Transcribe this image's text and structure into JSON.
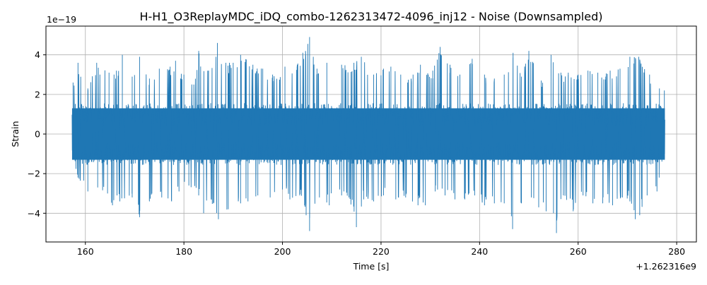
{
  "chart_data": {
    "type": "line",
    "title": "H-H1_O3ReplayMDC_iDQ_combo-1262313472-4096_inj12 - Noise (Downsampled)",
    "xlabel": "Time [s]",
    "ylabel": "Strain",
    "x_offset_label": "+1.262316e9",
    "y_scale_label": "1e−19",
    "xlim": [
      152.0,
      284.0
    ],
    "ylim": [
      -5.45,
      5.45
    ],
    "x_ticks": [
      160,
      180,
      200,
      220,
      240,
      260,
      280
    ],
    "x_tick_labels": [
      "160",
      "180",
      "200",
      "220",
      "240",
      "260",
      "280"
    ],
    "y_ticks": [
      -4,
      -2,
      0,
      2,
      4
    ],
    "y_tick_labels": [
      "−4",
      "−2",
      "0",
      "2",
      "4"
    ],
    "grid": true,
    "series": [
      {
        "color": "#1f77b4",
        "x_range": [
          157.3,
          277.6
        ],
        "typical_band": [
          -1.3,
          1.3
        ],
        "envelope_upper": [
          [
            157.5,
            2.6
          ],
          [
            158.5,
            3.6
          ],
          [
            160.5,
            2.3
          ],
          [
            162.3,
            3.6
          ],
          [
            164.8,
            3.1
          ],
          [
            166.3,
            3.2
          ],
          [
            167.5,
            4.0
          ],
          [
            169.5,
            2.9
          ],
          [
            171.0,
            3.9
          ],
          [
            173.0,
            2.8
          ],
          [
            175.0,
            3.3
          ],
          [
            177.2,
            3.4
          ],
          [
            178.3,
            3.7
          ],
          [
            180.0,
            3.0
          ],
          [
            182.0,
            2.5
          ],
          [
            183.0,
            4.2
          ],
          [
            185.0,
            3.2
          ],
          [
            186.8,
            4.6
          ],
          [
            188.5,
            3.6
          ],
          [
            190.0,
            3.6
          ],
          [
            191.5,
            4.0
          ],
          [
            194.0,
            3.5
          ],
          [
            196.0,
            3.3
          ],
          [
            198.0,
            3.0
          ],
          [
            200.5,
            3.4
          ],
          [
            203.0,
            3.5
          ],
          [
            205.5,
            4.9
          ],
          [
            207.0,
            3.3
          ],
          [
            209.0,
            3.6
          ],
          [
            212.0,
            3.5
          ],
          [
            214.5,
            3.6
          ],
          [
            216.0,
            3.9
          ],
          [
            218.5,
            3.0
          ],
          [
            220.5,
            3.3
          ],
          [
            222.0,
            3.4
          ],
          [
            224.0,
            3.0
          ],
          [
            226.5,
            3.0
          ],
          [
            228.0,
            3.5
          ],
          [
            230.5,
            3.2
          ],
          [
            232.0,
            4.4
          ],
          [
            234.0,
            3.5
          ],
          [
            236.0,
            3.0
          ],
          [
            238.5,
            3.8
          ],
          [
            241.0,
            3.0
          ],
          [
            243.0,
            2.8
          ],
          [
            245.0,
            3.0
          ],
          [
            246.8,
            4.1
          ],
          [
            248.5,
            2.9
          ],
          [
            250.0,
            4.2
          ],
          [
            252.5,
            2.7
          ],
          [
            254.5,
            4.0
          ],
          [
            256.5,
            3.1
          ],
          [
            258.0,
            3.1
          ],
          [
            260.0,
            3.0
          ],
          [
            262.0,
            3.2
          ],
          [
            264.0,
            3.1
          ],
          [
            266.5,
            3.2
          ],
          [
            268.5,
            3.3
          ],
          [
            270.5,
            3.9
          ],
          [
            272.3,
            3.9
          ],
          [
            274.5,
            3.0
          ],
          [
            276.5,
            2.3
          ],
          [
            277.5,
            2.2
          ]
        ],
        "envelope_lower": [
          [
            157.5,
            -1.3
          ],
          [
            158.5,
            -2.2
          ],
          [
            160.5,
            -2.9
          ],
          [
            162.5,
            -2.7
          ],
          [
            164.5,
            -3.0
          ],
          [
            165.5,
            -3.6
          ],
          [
            167.0,
            -3.4
          ],
          [
            169.5,
            -3.2
          ],
          [
            171.0,
            -4.2
          ],
          [
            173.0,
            -3.4
          ],
          [
            175.5,
            -3.2
          ],
          [
            177.5,
            -3.4
          ],
          [
            179.0,
            -2.9
          ],
          [
            181.0,
            -2.6
          ],
          [
            183.0,
            -3.1
          ],
          [
            184.0,
            -4.0
          ],
          [
            186.0,
            -3.5
          ],
          [
            187.0,
            -4.3
          ],
          [
            189.0,
            -3.8
          ],
          [
            191.5,
            -3.5
          ],
          [
            193.0,
            -3.4
          ],
          [
            195.0,
            -3.1
          ],
          [
            197.5,
            -3.2
          ],
          [
            200.0,
            -2.8
          ],
          [
            201.5,
            -3.3
          ],
          [
            203.5,
            -3.1
          ],
          [
            204.8,
            -4.1
          ],
          [
            205.5,
            -4.9
          ],
          [
            207.5,
            -3.2
          ],
          [
            209.5,
            -3.6
          ],
          [
            212.0,
            -3.1
          ],
          [
            213.5,
            -3.2
          ],
          [
            215.0,
            -4.7
          ],
          [
            216.5,
            -3.3
          ],
          [
            218.5,
            -3.4
          ],
          [
            220.5,
            -3.1
          ],
          [
            223.0,
            -3.3
          ],
          [
            225.0,
            -3.2
          ],
          [
            227.5,
            -3.6
          ],
          [
            229.0,
            -3.6
          ],
          [
            231.0,
            -2.9
          ],
          [
            233.0,
            -3.1
          ],
          [
            235.0,
            -3.3
          ],
          [
            237.0,
            -3.3
          ],
          [
            239.0,
            -3.1
          ],
          [
            241.0,
            -3.6
          ],
          [
            243.0,
            -3.5
          ],
          [
            245.0,
            -3.5
          ],
          [
            246.7,
            -4.8
          ],
          [
            248.5,
            -3.5
          ],
          [
            250.5,
            -3.2
          ],
          [
            252.0,
            -3.7
          ],
          [
            253.5,
            -3.9
          ],
          [
            255.0,
            -4.0
          ],
          [
            255.6,
            -5.0
          ],
          [
            257.0,
            -3.1
          ],
          [
            259.0,
            -3.9
          ],
          [
            261.0,
            -3.1
          ],
          [
            263.0,
            -3.5
          ],
          [
            265.0,
            -3.5
          ],
          [
            267.0,
            -3.6
          ],
          [
            269.0,
            -3.2
          ],
          [
            270.5,
            -3.4
          ],
          [
            271.6,
            -4.3
          ],
          [
            272.5,
            -4.1
          ],
          [
            274.0,
            -3.1
          ],
          [
            276.0,
            -2.9
          ],
          [
            277.5,
            -1.2
          ]
        ]
      }
    ]
  }
}
